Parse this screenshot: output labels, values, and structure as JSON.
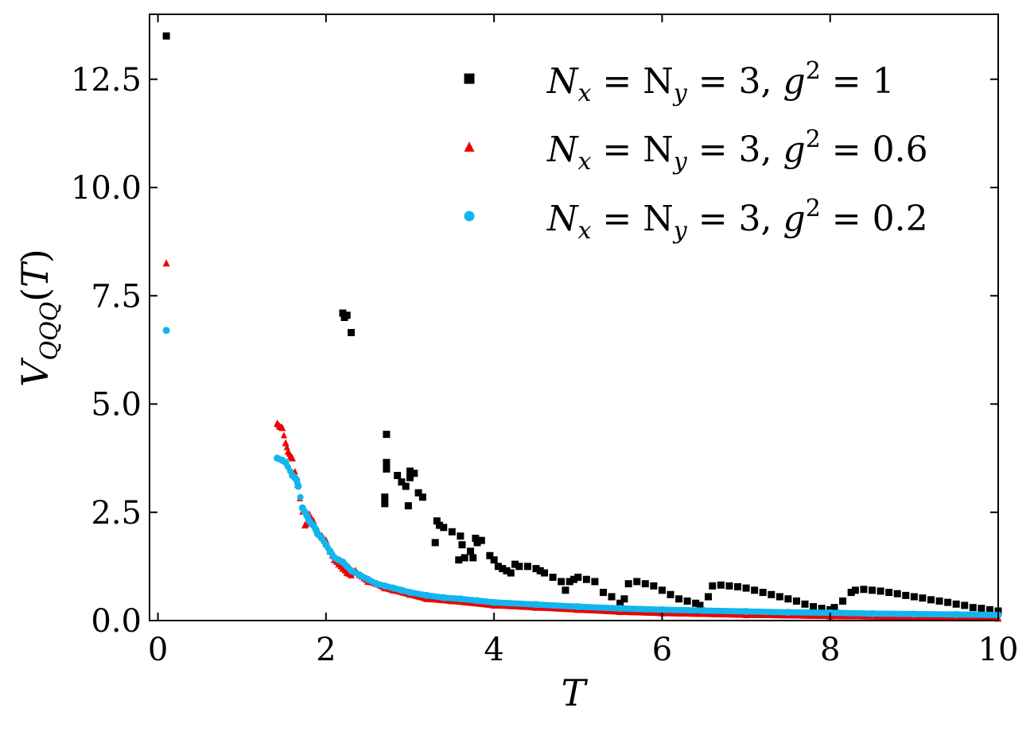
{
  "chart_data": {
    "type": "scatter",
    "xlabel": "T",
    "ylabel": "V_QQQ(T)",
    "xlim": [
      -0.1,
      10
    ],
    "ylim": [
      0,
      14
    ],
    "x_ticks": [
      0,
      2,
      4,
      6,
      8,
      10
    ],
    "x_tick_labels": [
      "0",
      "2",
      "4",
      "6",
      "8",
      "10"
    ],
    "y_ticks": [
      0,
      2.5,
      5,
      7.5,
      10,
      12.5
    ],
    "y_tick_labels": [
      "0.0",
      "2.5",
      "5.0",
      "7.5",
      "10.0",
      "12.5"
    ],
    "grid": false,
    "legend_position": "top-right",
    "series": [
      {
        "name": "N_x = N_y = 3, g^2 = 1",
        "color": "#000000",
        "marker": "square",
        "points": [
          [
            0.1,
            13.5
          ],
          [
            2.2,
            7.1
          ],
          [
            2.22,
            7.0
          ],
          [
            2.25,
            7.05
          ],
          [
            2.3,
            6.65
          ],
          [
            2.72,
            4.3
          ],
          [
            2.72,
            3.65
          ],
          [
            2.72,
            3.5
          ],
          [
            2.7,
            2.85
          ],
          [
            2.7,
            2.7
          ],
          [
            2.85,
            3.35
          ],
          [
            2.9,
            3.2
          ],
          [
            2.95,
            3.1
          ],
          [
            3.0,
            3.45
          ],
          [
            3.0,
            3.3
          ],
          [
            3.05,
            3.4
          ],
          [
            2.98,
            2.65
          ],
          [
            3.1,
            2.95
          ],
          [
            3.15,
            2.85
          ],
          [
            3.3,
            1.8
          ],
          [
            3.32,
            2.3
          ],
          [
            3.35,
            2.2
          ],
          [
            3.4,
            2.15
          ],
          [
            3.5,
            2.05
          ],
          [
            3.58,
            1.4
          ],
          [
            3.6,
            1.95
          ],
          [
            3.62,
            1.75
          ],
          [
            3.65,
            1.45
          ],
          [
            3.72,
            1.6
          ],
          [
            3.75,
            1.45
          ],
          [
            3.78,
            1.9
          ],
          [
            3.8,
            1.8
          ],
          [
            3.85,
            1.85
          ],
          [
            3.95,
            1.5
          ],
          [
            4.0,
            1.4
          ],
          [
            4.05,
            1.25
          ],
          [
            4.1,
            1.2
          ],
          [
            4.15,
            1.15
          ],
          [
            4.2,
            1.1
          ],
          [
            4.25,
            1.3
          ],
          [
            4.3,
            1.25
          ],
          [
            4.4,
            1.25
          ],
          [
            4.5,
            1.2
          ],
          [
            4.55,
            1.15
          ],
          [
            4.6,
            1.1
          ],
          [
            4.7,
            1.0
          ],
          [
            4.8,
            0.9
          ],
          [
            4.85,
            0.7
          ],
          [
            4.9,
            0.9
          ],
          [
            4.95,
            0.95
          ],
          [
            5.0,
            1.0
          ],
          [
            5.1,
            0.95
          ],
          [
            5.2,
            0.9
          ],
          [
            5.3,
            0.65
          ],
          [
            5.4,
            0.55
          ],
          [
            5.5,
            0.4
          ],
          [
            5.55,
            0.5
          ],
          [
            5.6,
            0.85
          ],
          [
            5.7,
            0.9
          ],
          [
            5.8,
            0.85
          ],
          [
            5.9,
            0.8
          ],
          [
            6.0,
            0.7
          ],
          [
            6.1,
            0.6
          ],
          [
            6.2,
            0.5
          ],
          [
            6.3,
            0.45
          ],
          [
            6.4,
            0.4
          ],
          [
            6.45,
            0.35
          ],
          [
            6.55,
            0.55
          ],
          [
            6.6,
            0.8
          ],
          [
            6.7,
            0.82
          ],
          [
            6.8,
            0.8
          ],
          [
            6.9,
            0.78
          ],
          [
            7.0,
            0.75
          ],
          [
            7.1,
            0.7
          ],
          [
            7.2,
            0.65
          ],
          [
            7.3,
            0.6
          ],
          [
            7.4,
            0.55
          ],
          [
            7.5,
            0.5
          ],
          [
            7.6,
            0.45
          ],
          [
            7.7,
            0.38
          ],
          [
            7.8,
            0.32
          ],
          [
            7.9,
            0.28
          ],
          [
            8.0,
            0.25
          ],
          [
            8.05,
            0.3
          ],
          [
            8.15,
            0.45
          ],
          [
            8.25,
            0.65
          ],
          [
            8.3,
            0.7
          ],
          [
            8.4,
            0.72
          ],
          [
            8.5,
            0.7
          ],
          [
            8.6,
            0.68
          ],
          [
            8.7,
            0.65
          ],
          [
            8.8,
            0.62
          ],
          [
            8.9,
            0.58
          ],
          [
            9.0,
            0.55
          ],
          [
            9.1,
            0.52
          ],
          [
            9.2,
            0.48
          ],
          [
            9.3,
            0.45
          ],
          [
            9.4,
            0.42
          ],
          [
            9.5,
            0.38
          ],
          [
            9.6,
            0.35
          ],
          [
            9.7,
            0.3
          ],
          [
            9.8,
            0.28
          ],
          [
            9.9,
            0.25
          ],
          [
            10.0,
            0.22
          ]
        ]
      },
      {
        "name": "N_x = N_y = 3, g^2 = 0.6",
        "color": "#ee0000",
        "marker": "triangle",
        "points": [
          [
            0.1,
            8.25
          ],
          [
            1.42,
            4.55
          ],
          [
            1.45,
            4.48
          ],
          [
            1.48,
            4.45
          ],
          [
            1.52,
            4.1
          ],
          [
            1.55,
            3.9
          ],
          [
            1.58,
            3.8
          ],
          [
            1.6,
            3.75
          ],
          [
            1.75,
            2.2
          ],
          [
            1.78,
            2.25
          ],
          [
            1.8,
            2.45
          ],
          [
            1.85,
            2.3
          ],
          [
            1.9,
            2.05
          ],
          [
            1.95,
            1.95
          ],
          [
            2.0,
            1.85
          ],
          [
            2.05,
            1.6
          ],
          [
            2.1,
            1.4
          ],
          [
            2.15,
            1.3
          ],
          [
            2.2,
            1.2
          ],
          [
            2.25,
            1.1
          ],
          [
            2.3,
            1.05
          ],
          [
            2.35,
            1.15
          ],
          [
            2.4,
            1.05
          ],
          [
            2.5,
            0.9
          ],
          [
            2.6,
            0.85
          ],
          [
            2.7,
            0.75
          ],
          [
            2.8,
            0.7
          ],
          [
            3.0,
            0.6
          ],
          [
            3.2,
            0.5
          ],
          [
            3.5,
            0.45
          ],
          [
            4.0,
            0.35
          ],
          [
            4.5,
            0.3
          ],
          [
            5.0,
            0.25
          ],
          [
            5.5,
            0.2
          ],
          [
            6.0,
            0.17
          ],
          [
            7.0,
            0.13
          ],
          [
            8.0,
            0.1
          ],
          [
            9.0,
            0.08
          ],
          [
            10.0,
            0.05
          ]
        ]
      },
      {
        "name": "N_x = N_y = 3, g^2 = 0.2",
        "color": "#12b5ee",
        "marker": "circle",
        "points": [
          [
            0.1,
            6.7
          ],
          [
            1.42,
            3.75
          ],
          [
            1.48,
            3.7
          ],
          [
            1.52,
            3.65
          ],
          [
            1.6,
            3.35
          ],
          [
            1.63,
            3.3
          ],
          [
            1.65,
            3.25
          ],
          [
            1.67,
            3.1
          ],
          [
            1.72,
            2.6
          ],
          [
            1.75,
            2.5
          ],
          [
            1.78,
            2.4
          ],
          [
            1.8,
            2.3
          ],
          [
            1.82,
            2.25
          ],
          [
            1.85,
            2.2
          ],
          [
            1.88,
            2.1
          ],
          [
            1.9,
            2.0
          ],
          [
            1.95,
            1.9
          ],
          [
            2.0,
            1.75
          ],
          [
            2.05,
            1.6
          ],
          [
            2.1,
            1.45
          ],
          [
            2.15,
            1.4
          ],
          [
            2.2,
            1.35
          ],
          [
            2.25,
            1.25
          ],
          [
            2.3,
            1.15
          ],
          [
            2.4,
            1.05
          ],
          [
            2.5,
            0.95
          ],
          [
            2.6,
            0.85
          ],
          [
            2.7,
            0.8
          ],
          [
            2.8,
            0.75
          ],
          [
            2.9,
            0.7
          ],
          [
            3.0,
            0.65
          ],
          [
            3.2,
            0.58
          ],
          [
            3.4,
            0.53
          ],
          [
            3.6,
            0.5
          ],
          [
            3.8,
            0.46
          ],
          [
            4.0,
            0.42
          ],
          [
            4.5,
            0.37
          ],
          [
            5.0,
            0.32
          ],
          [
            5.5,
            0.28
          ],
          [
            6.0,
            0.25
          ],
          [
            6.5,
            0.23
          ],
          [
            7.0,
            0.21
          ],
          [
            7.5,
            0.19
          ],
          [
            8.0,
            0.18
          ],
          [
            8.5,
            0.16
          ],
          [
            9.0,
            0.15
          ],
          [
            9.5,
            0.14
          ],
          [
            10.0,
            0.13
          ]
        ]
      }
    ]
  }
}
